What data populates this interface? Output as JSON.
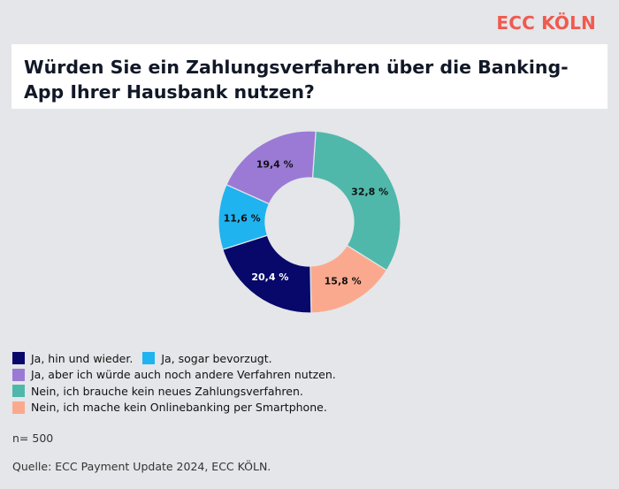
{
  "brand": "ECC KÖLN",
  "n_label": "n= 500",
  "source": "Quelle: ECC Payment Update 2024, ECC KÖLN.",
  "chart_data": {
    "type": "pie",
    "donut": true,
    "title": "Würden Sie ein Zahlungsverfahren über die Banking-App Ihrer Hausbank nutzen?",
    "series": [
      {
        "name": "Nein, ich brauche kein neues Zahlungsverfahren.",
        "value": 32.8,
        "label": "32,8 %",
        "color": "#4fb8aa"
      },
      {
        "name": "Nein, ich mache kein Onlinebanking per Smartphone.",
        "value": 15.8,
        "label": "15,8 %",
        "color": "#fba98e"
      },
      {
        "name": "Ja, hin und wieder.",
        "value": 20.4,
        "label": "20,4 %",
        "color": "#07086a"
      },
      {
        "name": "Ja, sogar bevorzugt.",
        "value": 11.6,
        "label": "11,6 %",
        "color": "#1fb3f0"
      },
      {
        "name": "Ja, aber ich würde auch noch andere Verfahren nutzen.",
        "value": 19.4,
        "label": "19,4 %",
        "color": "#9b7ad5"
      }
    ],
    "legend": {
      "placement": "bottom-left",
      "rows": [
        [
          {
            "label": "Ja, hin und wieder.",
            "color": "#07086a"
          },
          {
            "label": "Ja, sogar bevorzugt.",
            "color": "#1fb3f0"
          }
        ],
        [
          {
            "label": "Ja, aber ich würde auch noch andere Verfahren nutzen.",
            "color": "#9b7ad5"
          }
        ],
        [
          {
            "label": "Nein, ich brauche kein neues Zahlungsverfahren.",
            "color": "#4fb8aa"
          }
        ],
        [
          {
            "label": "Nein, ich mache kein Onlinebanking per Smartphone.",
            "color": "#fba98e"
          }
        ]
      ]
    }
  }
}
